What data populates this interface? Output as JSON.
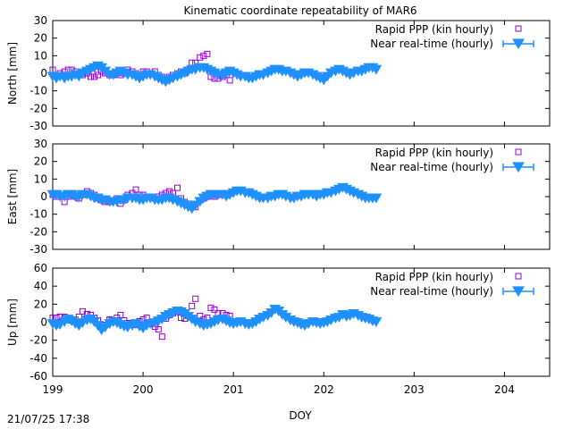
{
  "title": "Kinematic coordinate repeatability of MAR6",
  "timestamp": "21/07/25 17:38",
  "colors": {
    "rapid": "#9400d3",
    "nrt": "#1e90ff",
    "axis": "#000000"
  },
  "chart_data": {
    "type": "scatter",
    "title": "Kinematic coordinate repeatability of MAR6",
    "xlabel": "DOY",
    "xlim": [
      199,
      204.5
    ],
    "xticks": [
      199,
      200,
      201,
      202,
      203,
      204
    ],
    "legend_position": "top-right",
    "series_names": [
      "Rapid PPP (kin hourly)",
      "Near real-time (hourly)"
    ],
    "panels": [
      {
        "ylabel": "North [mm]",
        "ylim": [
          -30,
          30
        ],
        "yticks": [
          -30,
          -20,
          -10,
          0,
          10,
          20,
          30
        ],
        "series": [
          {
            "name": "Rapid PPP (kin hourly)",
            "marker": "square",
            "x": [
              199.0,
              199.04,
              199.08,
              199.13,
              199.17,
              199.21,
              199.25,
              199.29,
              199.33,
              199.38,
              199.42,
              199.46,
              199.5,
              199.54,
              199.58,
              199.63,
              199.67,
              199.71,
              199.75,
              199.79,
              199.83,
              199.88,
              199.92,
              199.96,
              200.0,
              200.04,
              200.08,
              200.13,
              200.17,
              200.21,
              200.25,
              200.29,
              200.33,
              200.38,
              200.42,
              200.46,
              200.5,
              200.54,
              200.58,
              200.63,
              200.67,
              200.71,
              200.75,
              200.79,
              200.83,
              200.88,
              200.92,
              200.96
            ],
            "y": [
              2,
              -1,
              0,
              1,
              2,
              2,
              1,
              0,
              -1,
              0,
              -2,
              -2,
              -1,
              1,
              0,
              -1,
              -1,
              0,
              -1,
              0,
              2,
              1,
              0,
              -1,
              1,
              1,
              0,
              1,
              -1,
              -2,
              -3,
              -2,
              -1,
              0,
              1,
              0,
              2,
              6,
              6,
              9,
              10,
              11,
              -2,
              -3,
              -3,
              -2,
              -1,
              -4
            ]
          },
          {
            "name": "Near real-time (hourly)",
            "marker": "triangle-down",
            "x": [
              199.0,
              199.04,
              199.08,
              199.13,
              199.17,
              199.21,
              199.25,
              199.29,
              199.33,
              199.38,
              199.42,
              199.46,
              199.5,
              199.54,
              199.58,
              199.63,
              199.67,
              199.71,
              199.75,
              199.79,
              199.83,
              199.88,
              199.92,
              199.96,
              200.0,
              200.04,
              200.08,
              200.13,
              200.17,
              200.21,
              200.25,
              200.29,
              200.33,
              200.38,
              200.42,
              200.46,
              200.5,
              200.54,
              200.58,
              200.63,
              200.67,
              200.71,
              200.75,
              200.79,
              200.83,
              200.88,
              200.92,
              200.96,
              201.0,
              201.04,
              201.08,
              201.13,
              201.17,
              201.21,
              201.25,
              201.29,
              201.33,
              201.38,
              201.42,
              201.46,
              201.5,
              201.54,
              201.58,
              201.63,
              201.67,
              201.71,
              201.75,
              201.79,
              201.83,
              201.88,
              201.92,
              201.96,
              202.0,
              202.04,
              202.08,
              202.13,
              202.17,
              202.21,
              202.25,
              202.29,
              202.33,
              202.38,
              202.42,
              202.46,
              202.5,
              202.54,
              202.58
            ],
            "y": [
              -2,
              -3,
              -2,
              -3,
              -2,
              -2,
              -1,
              -2,
              0,
              1,
              2,
              3,
              4,
              3,
              1,
              -1,
              -1,
              0,
              1,
              0,
              -1,
              -1,
              -2,
              -3,
              -2,
              -1,
              -1,
              -2,
              -3,
              -4,
              -5,
              -4,
              -3,
              -2,
              -1,
              0,
              1,
              2,
              2,
              3,
              3,
              2,
              1,
              0,
              -1,
              -1,
              0,
              1,
              0,
              -1,
              -2,
              -2,
              -3,
              -3,
              -2,
              -1,
              -1,
              0,
              1,
              2,
              2,
              1,
              1,
              0,
              -1,
              -2,
              -1,
              0,
              0,
              -1,
              -2,
              -3,
              -4,
              -2,
              0,
              1,
              2,
              1,
              0,
              -1,
              0,
              1,
              1,
              2,
              3,
              3,
              2
            ]
          }
        ]
      },
      {
        "ylabel": "East [mm]",
        "ylim": [
          -30,
          30
        ],
        "yticks": [
          -30,
          -20,
          -10,
          0,
          10,
          20,
          30
        ],
        "series": [
          {
            "name": "Rapid PPP (kin hourly)",
            "marker": "square",
            "x": [
              199.0,
              199.04,
              199.08,
              199.13,
              199.17,
              199.21,
              199.25,
              199.29,
              199.33,
              199.38,
              199.42,
              199.46,
              199.5,
              199.54,
              199.58,
              199.63,
              199.67,
              199.71,
              199.75,
              199.79,
              199.83,
              199.88,
              199.92,
              199.96,
              200.0,
              200.04,
              200.08,
              200.13,
              200.17,
              200.21,
              200.25,
              200.29,
              200.33,
              200.38,
              200.42,
              200.46,
              200.5,
              200.54,
              200.58,
              200.63,
              200.67,
              200.71,
              200.75,
              200.79,
              200.83,
              200.88,
              200.92,
              200.96
            ],
            "y": [
              1,
              0,
              1,
              -3,
              0,
              1,
              0,
              -1,
              1,
              3,
              2,
              1,
              -1,
              -2,
              -3,
              -3,
              -2,
              -1,
              -4,
              -2,
              1,
              2,
              4,
              1,
              1,
              0,
              0,
              -1,
              0,
              1,
              2,
              3,
              2,
              5,
              -1,
              -3,
              -4,
              -5,
              -6,
              -2,
              -1,
              0,
              1,
              0,
              1,
              2,
              1,
              2
            ]
          },
          {
            "name": "Near real-time (hourly)",
            "marker": "triangle-down",
            "x": [
              199.0,
              199.04,
              199.08,
              199.13,
              199.17,
              199.21,
              199.25,
              199.29,
              199.33,
              199.38,
              199.42,
              199.46,
              199.5,
              199.54,
              199.58,
              199.63,
              199.67,
              199.71,
              199.75,
              199.79,
              199.83,
              199.88,
              199.92,
              199.96,
              200.0,
              200.04,
              200.08,
              200.13,
              200.17,
              200.21,
              200.25,
              200.29,
              200.33,
              200.38,
              200.42,
              200.46,
              200.5,
              200.54,
              200.58,
              200.63,
              200.67,
              200.71,
              200.75,
              200.79,
              200.83,
              200.88,
              200.92,
              200.96,
              201.0,
              201.04,
              201.08,
              201.13,
              201.17,
              201.21,
              201.25,
              201.29,
              201.33,
              201.38,
              201.42,
              201.46,
              201.5,
              201.54,
              201.58,
              201.63,
              201.67,
              201.71,
              201.75,
              201.79,
              201.83,
              201.88,
              201.92,
              201.96,
              202.0,
              202.04,
              202.08,
              202.13,
              202.17,
              202.21,
              202.25,
              202.29,
              202.33,
              202.38,
              202.42,
              202.46,
              202.5,
              202.54,
              202.58
            ],
            "y": [
              1,
              1,
              0,
              0,
              1,
              1,
              0,
              0,
              1,
              1,
              0,
              -1,
              -1,
              -2,
              -2,
              -3,
              -3,
              -3,
              -2,
              -2,
              -1,
              -1,
              -1,
              -2,
              -2,
              -1,
              -1,
              -2,
              -2,
              -2,
              -1,
              -1,
              -2,
              -3,
              -4,
              -5,
              -6,
              -7,
              -5,
              -3,
              -1,
              0,
              1,
              1,
              1,
              1,
              0,
              1,
              2,
              3,
              3,
              2,
              2,
              1,
              0,
              -1,
              -1,
              -1,
              0,
              0,
              1,
              1,
              0,
              -1,
              -1,
              0,
              0,
              1,
              1,
              1,
              0,
              1,
              1,
              2,
              2,
              3,
              4,
              5,
              4,
              3,
              2,
              1,
              0,
              -1,
              -1,
              -1,
              -1
            ]
          }
        ]
      },
      {
        "ylabel": "Up [mm]",
        "ylim": [
          -60,
          60
        ],
        "yticks": [
          -60,
          -40,
          -20,
          0,
          20,
          40,
          60
        ],
        "series": [
          {
            "name": "Rapid PPP (kin hourly)",
            "marker": "square",
            "x": [
              199.0,
              199.04,
              199.08,
              199.13,
              199.17,
              199.21,
              199.25,
              199.29,
              199.33,
              199.38,
              199.42,
              199.46,
              199.5,
              199.54,
              199.58,
              199.63,
              199.67,
              199.71,
              199.75,
              199.79,
              199.83,
              199.88,
              199.92,
              199.96,
              200.0,
              200.04,
              200.08,
              200.13,
              200.17,
              200.21,
              200.25,
              200.29,
              200.33,
              200.38,
              200.42,
              200.46,
              200.5,
              200.54,
              200.58,
              200.63,
              200.67,
              200.71,
              200.75,
              200.79,
              200.83,
              200.88,
              200.92,
              200.96
            ],
            "y": [
              5,
              5,
              6,
              6,
              4,
              2,
              3,
              6,
              12,
              9,
              8,
              5,
              2,
              -5,
              -3,
              3,
              2,
              5,
              8,
              2,
              -1,
              -2,
              -3,
              1,
              3,
              5,
              -2,
              -5,
              -8,
              -16,
              4,
              8,
              10,
              12,
              5,
              4,
              7,
              18,
              26,
              7,
              3,
              5,
              16,
              14,
              10,
              10,
              8,
              7
            ]
          },
          {
            "name": "Near real-time (hourly)",
            "marker": "triangle-down",
            "x": [
              199.0,
              199.04,
              199.08,
              199.13,
              199.17,
              199.21,
              199.25,
              199.29,
              199.33,
              199.38,
              199.42,
              199.46,
              199.5,
              199.54,
              199.58,
              199.63,
              199.67,
              199.71,
              199.75,
              199.79,
              199.83,
              199.88,
              199.92,
              199.96,
              200.0,
              200.04,
              200.08,
              200.13,
              200.17,
              200.21,
              200.25,
              200.29,
              200.33,
              200.38,
              200.42,
              200.46,
              200.5,
              200.54,
              200.58,
              200.63,
              200.67,
              200.71,
              200.75,
              200.79,
              200.83,
              200.88,
              200.92,
              200.96,
              201.0,
              201.04,
              201.08,
              201.13,
              201.17,
              201.21,
              201.25,
              201.29,
              201.33,
              201.38,
              201.42,
              201.46,
              201.5,
              201.54,
              201.58,
              201.63,
              201.67,
              201.71,
              201.75,
              201.79,
              201.83,
              201.88,
              201.92,
              201.96,
              202.0,
              202.04,
              202.08,
              202.13,
              202.17,
              202.21,
              202.25,
              202.29,
              202.33,
              202.38,
              202.42,
              202.46,
              202.5,
              202.54,
              202.58
            ],
            "y": [
              -2,
              -4,
              -3,
              0,
              3,
              1,
              -2,
              -4,
              -1,
              2,
              3,
              0,
              -4,
              -9,
              -6,
              -2,
              0,
              -1,
              -3,
              -5,
              -6,
              -4,
              -2,
              -5,
              -7,
              -4,
              -2,
              -1,
              1,
              3,
              6,
              8,
              10,
              12,
              11,
              9,
              6,
              3,
              0,
              -2,
              -4,
              -3,
              -2,
              0,
              2,
              3,
              1,
              -1,
              -2,
              -1,
              0,
              -2,
              -3,
              -2,
              0,
              3,
              5,
              7,
              10,
              14,
              12,
              8,
              5,
              2,
              0,
              -1,
              -3,
              -4,
              -2,
              0,
              -1,
              -2,
              -1,
              0,
              2,
              4,
              5,
              8,
              6,
              7,
              9,
              7,
              5,
              4,
              3,
              1,
              0
            ]
          }
        ]
      }
    ]
  }
}
